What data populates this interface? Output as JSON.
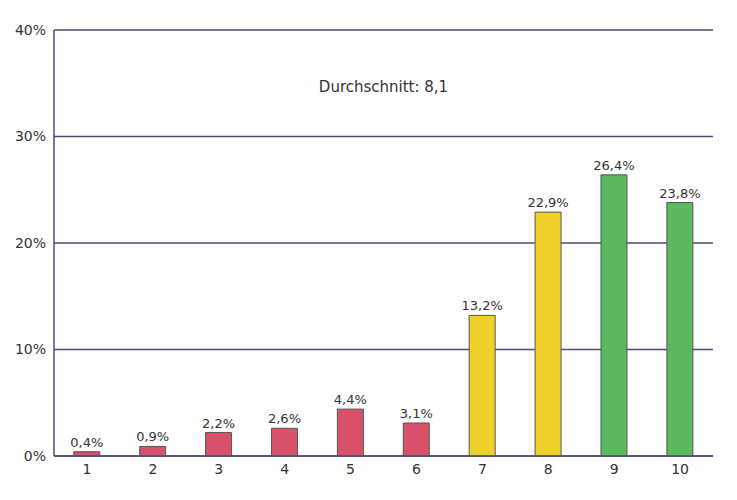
{
  "chart_data": {
    "type": "bar",
    "annotation": "Durchschnitt: 8,1",
    "categories": [
      "1",
      "2",
      "3",
      "4",
      "5",
      "6",
      "7",
      "8",
      "9",
      "10"
    ],
    "values": [
      0.4,
      0.9,
      2.2,
      2.6,
      4.4,
      3.1,
      13.2,
      22.9,
      26.4,
      23.8
    ],
    "value_labels": [
      "0,4%",
      "0,9%",
      "2,2%",
      "2,6%",
      "4,4%",
      "3,1%",
      "13,2%",
      "22,9%",
      "26,4%",
      "23,8%"
    ],
    "data_labels": true,
    "colors": [
      "#d9506a",
      "#d9506a",
      "#d9506a",
      "#d9506a",
      "#d9506a",
      "#d9506a",
      "#f0d02a",
      "#f0d02a",
      "#5cb85c",
      "#5cb85c"
    ],
    "ylim": [
      0,
      40
    ],
    "yticks": [
      {
        "value": 0,
        "label": "0%"
      },
      {
        "value": 10,
        "label": "10%"
      },
      {
        "value": 20,
        "label": "20%"
      },
      {
        "value": 30,
        "label": "30%"
      },
      {
        "value": 40,
        "label": "40%"
      }
    ],
    "grid": true
  }
}
